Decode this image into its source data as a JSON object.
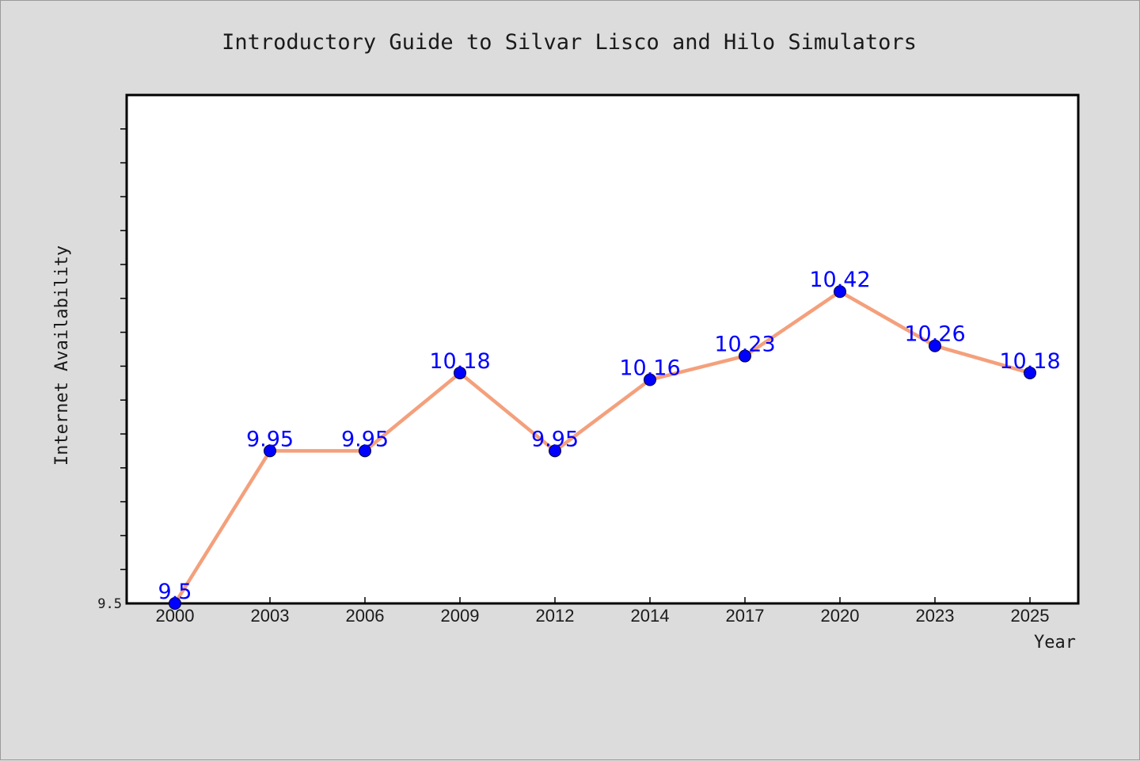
{
  "chart_data": {
    "type": "line",
    "title": "Introductory Guide to Silvar Lisco and Hilo Simulators",
    "xlabel": "Year",
    "ylabel": "Internet Availability",
    "categories": [
      "2000",
      "2003",
      "2006",
      "2009",
      "2012",
      "2014",
      "2017",
      "2020",
      "2023",
      "2025"
    ],
    "series": [
      {
        "values": [
          9.5,
          9.95,
          9.95,
          10.18,
          9.95,
          10.16,
          10.23,
          10.42,
          10.26,
          10.18
        ],
        "labels": [
          "9.5",
          "9.95",
          "9.95",
          "10.18",
          "9.95",
          "10.16",
          "10.23",
          "10.42",
          "10.26",
          "10.18"
        ]
      }
    ],
    "ylim": [
      9.5,
      11.0
    ],
    "yticks_labeled": [
      "9.5"
    ],
    "minor_ytick_step": 0.1,
    "grid": false,
    "colors": {
      "line": "#f4a07c",
      "marker": "#0000ff",
      "data_label": "#0000ff",
      "background": "#dcdcdc",
      "plot_background": "#ffffff"
    }
  }
}
